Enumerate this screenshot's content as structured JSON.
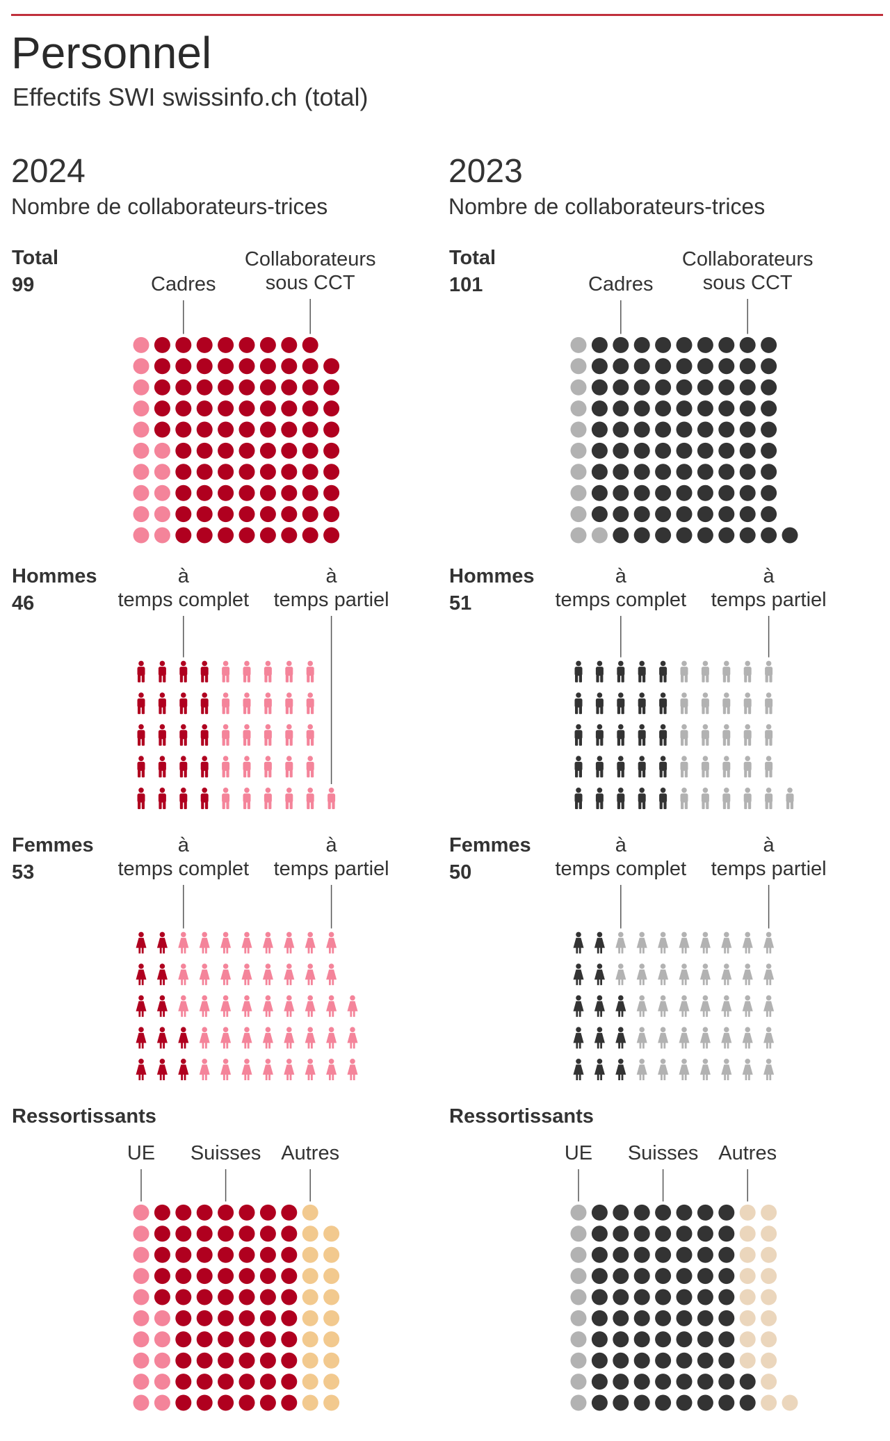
{
  "title": "Personnel",
  "subtitle": "Effectifs SWI swissinfo.ch (total)",
  "colors": {
    "2024": {
      "dark": "#b0001f",
      "light": "#f4849a",
      "other": "#f2c98e"
    },
    "2023": {
      "dark": "#333333",
      "light": "#b2b2b2",
      "other": "#ebd6bc"
    }
  },
  "chart_data": [
    {
      "type": "waffle",
      "year": "2024",
      "subtitle": "Nombre de collaborateurs-trices",
      "sections": {
        "total": {
          "title": "Total",
          "count": "99",
          "icon": "dot",
          "categories": [
            {
              "label": "Cadres",
              "value": 15,
              "color_key": "light"
            },
            {
              "label": "Collaborateurs sous CCT",
              "value": 84,
              "color_key": "dark"
            }
          ]
        },
        "hommes": {
          "title": "Hommes",
          "count": "46",
          "icon": "man-icon",
          "categories": [
            {
              "label": "à temps complet",
              "value": 20,
              "color_key": "dark"
            },
            {
              "label": "à temps partiel",
              "value": 26,
              "color_key": "light"
            }
          ]
        },
        "femmes": {
          "title": "Femmes",
          "count": "53",
          "icon": "woman-icon",
          "categories": [
            {
              "label": "à temps complet",
              "value": 12,
              "color_key": "dark"
            },
            {
              "label": "à temps partiel",
              "value": 41,
              "color_key": "light"
            }
          ]
        },
        "ressortissants": {
          "title": "Ressortissants",
          "count": "",
          "icon": "dot",
          "categories": [
            {
              "label": "UE",
              "value": 15,
              "color_key": "light"
            },
            {
              "label": "Suisses",
              "value": 65,
              "color_key": "dark"
            },
            {
              "label": "Autres",
              "value": 19,
              "color_key": "other"
            }
          ]
        }
      }
    },
    {
      "type": "waffle",
      "year": "2023",
      "subtitle": "Nombre de collaborateurs-trices",
      "sections": {
        "total": {
          "title": "Total",
          "count": "101",
          "icon": "dot",
          "categories": [
            {
              "label": "Cadres",
              "value": 11,
              "color_key": "light"
            },
            {
              "label": "Collaborateurs sous CCT",
              "value": 90,
              "color_key": "dark"
            }
          ]
        },
        "hommes": {
          "title": "Hommes",
          "count": "51",
          "icon": "man-icon",
          "categories": [
            {
              "label": "à temps complet",
              "value": 25,
              "color_key": "dark"
            },
            {
              "label": "à temps partiel",
              "value": 26,
              "color_key": "light"
            }
          ]
        },
        "femmes": {
          "title": "Femmes",
          "count": "50",
          "icon": "woman-icon",
          "categories": [
            {
              "label": "à temps complet",
              "value": 13,
              "color_key": "dark"
            },
            {
              "label": "à temps partiel",
              "value": 37,
              "color_key": "light"
            }
          ]
        },
        "ressortissants": {
          "title": "Ressortissants",
          "count": "",
          "icon": "dot",
          "categories": [
            {
              "label": "UE",
              "value": 10,
              "color_key": "light"
            },
            {
              "label": "Suisses",
              "value": 72,
              "color_key": "dark"
            },
            {
              "label": "Autres",
              "value": 19,
              "color_key": "other"
            }
          ]
        }
      }
    }
  ]
}
